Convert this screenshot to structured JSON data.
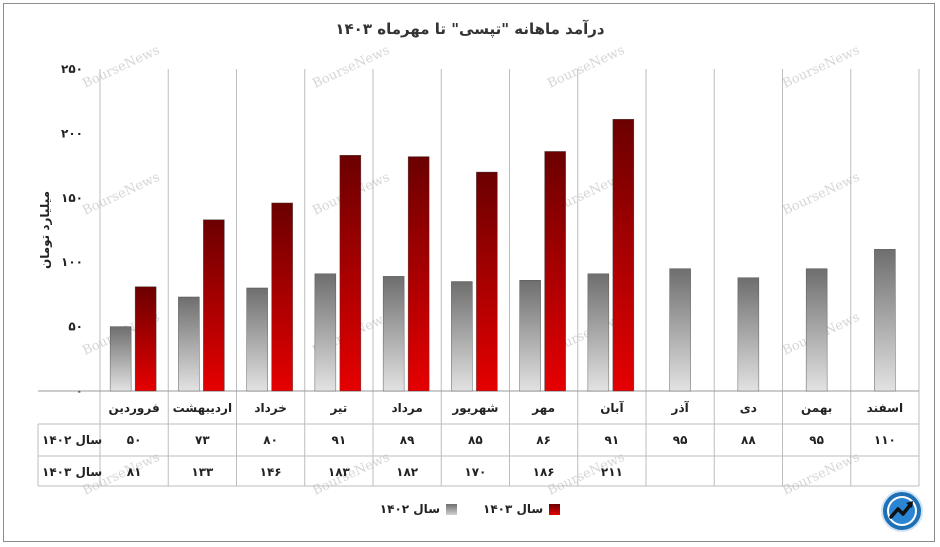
{
  "chart_data": {
    "type": "bar",
    "title": "درآمد ماهانه \"تپسی\" تا مهرماه  ۱۴۰۳",
    "ylabel": "میلیارد تومان",
    "ylim": [
      0,
      250
    ],
    "yticks": [
      "۰",
      "۵۰",
      "۱۰۰",
      "۱۵۰",
      "۲۰۰",
      "۲۵۰"
    ],
    "categories": [
      "فروردین",
      "اردیبهشت",
      "خرداد",
      "تیر",
      "مرداد",
      "شهریور",
      "مهر",
      "آبان",
      "آذر",
      "دی",
      "بهمن",
      "اسفند"
    ],
    "series": [
      {
        "name": "سال ۱۴۰۲",
        "color": "#8a8a8a",
        "values": [
          50,
          73,
          80,
          91,
          89,
          85,
          86,
          91,
          95,
          88,
          95,
          110
        ],
        "labels": [
          "۵۰",
          "۷۳",
          "۸۰",
          "۹۱",
          "۸۹",
          "۸۵",
          "۸۶",
          "۹۱",
          "۹۵",
          "۸۸",
          "۹۵",
          "۱۱۰"
        ]
      },
      {
        "name": "سال ۱۴۰۳",
        "color": "#c00000",
        "values": [
          81,
          133,
          146,
          183,
          182,
          170,
          186,
          211,
          null,
          null,
          null,
          null
        ],
        "labels": [
          "۸۱",
          "۱۳۳",
          "۱۴۶",
          "۱۸۳",
          "۱۸۲",
          "۱۷۰",
          "۱۸۶",
          "۲۱۱",
          "",
          "",
          "",
          ""
        ]
      }
    ],
    "legend_position": "bottom",
    "grid": "vertical",
    "data_table": true
  },
  "watermark": "BourseNews",
  "logo_icon": "trend-arrow-icon"
}
